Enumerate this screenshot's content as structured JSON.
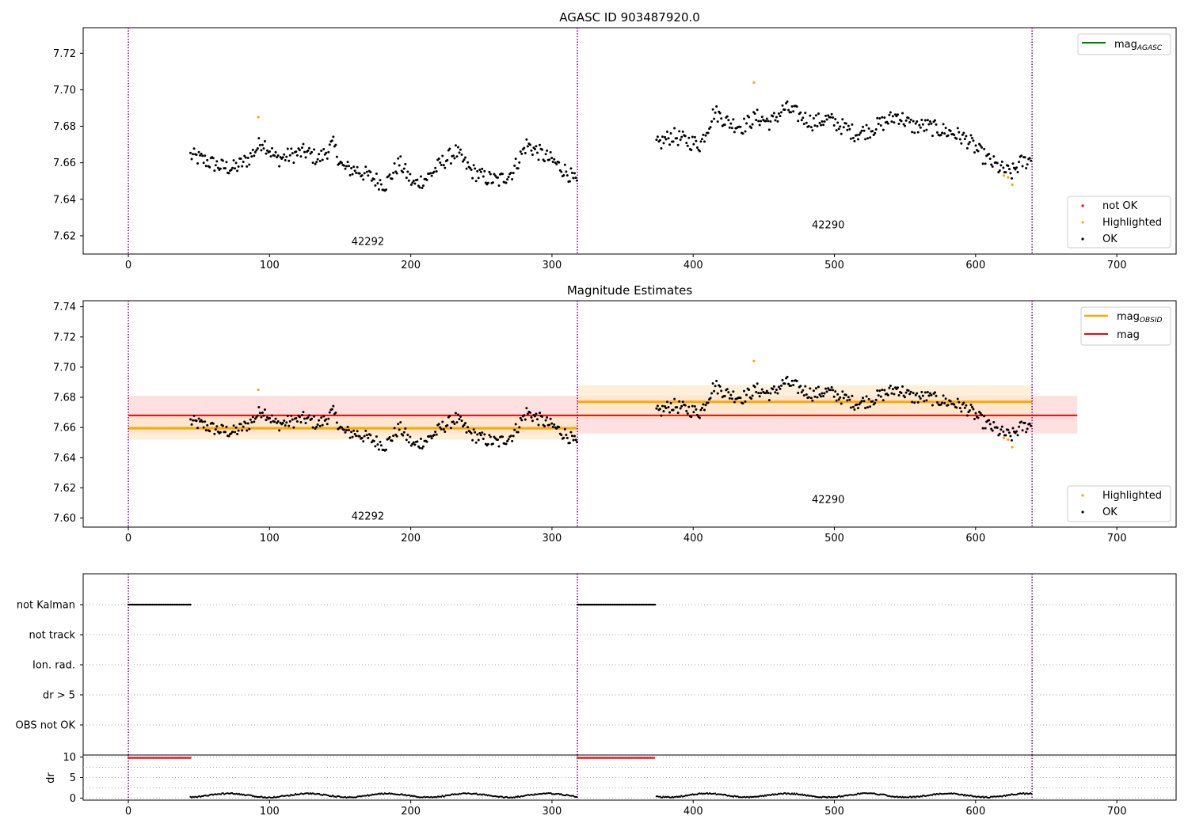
{
  "figure": {
    "colors": {
      "ok": "#000000",
      "highlighted": "#ffa500",
      "not_ok": "#ff0000",
      "agasc": "#008000",
      "mag": "#ff0000",
      "obsid": "#ffa500",
      "boundary": "#800080",
      "mag_band": "#ffcccc",
      "obsid_band": "#fde8c8"
    }
  },
  "chart_data": [
    {
      "id": "top",
      "type": "scatter",
      "title": "AGASC ID 903487920.0",
      "xlim": [
        -32,
        742
      ],
      "ylim": [
        7.61,
        7.734
      ],
      "xticks": [
        0,
        100,
        200,
        300,
        400,
        500,
        600,
        700
      ],
      "xtick_labels": [
        "0",
        "100",
        "200",
        "300",
        "400",
        "500",
        "600",
        "700"
      ],
      "yticks": [
        7.62,
        7.64,
        7.66,
        7.68,
        7.7,
        7.72
      ],
      "ytick_labels": [
        "7.62",
        "7.64",
        "7.66",
        "7.68",
        "7.70",
        "7.72"
      ],
      "obsid_boundaries": [
        0,
        318,
        640
      ],
      "obsid_labels": [
        {
          "x": 158,
          "y": 7.615,
          "text": "42292"
        },
        {
          "x": 484,
          "y": 7.624,
          "text": "42290"
        }
      ],
      "highlighted_points": [
        [
          92,
          7.685
        ],
        [
          443,
          7.704
        ],
        [
          620,
          7.653
        ],
        [
          623,
          7.652
        ],
        [
          626,
          7.648
        ]
      ],
      "legend_upper": [
        {
          "label": "mag",
          "subscript": "AGASC",
          "color": "#008000",
          "kind": "line"
        }
      ],
      "legend_lower": [
        {
          "label": "not OK",
          "color": "#ff0000",
          "kind": "marker"
        },
        {
          "label": "Highlighted",
          "color": "#ffa500",
          "kind": "marker"
        },
        {
          "label": "OK",
          "color": "#000000",
          "kind": "marker"
        }
      ]
    },
    {
      "id": "middle",
      "type": "scatter",
      "title": "Magnitude Estimates",
      "xlim": [
        -32,
        742
      ],
      "ylim": [
        7.594,
        7.744
      ],
      "xticks": [
        0,
        100,
        200,
        300,
        400,
        500,
        600,
        700
      ],
      "xtick_labels": [
        "0",
        "100",
        "200",
        "300",
        "400",
        "500",
        "600",
        "700"
      ],
      "yticks": [
        7.6,
        7.62,
        7.64,
        7.66,
        7.68,
        7.7,
        7.72,
        7.74
      ],
      "ytick_labels": [
        "7.60",
        "7.62",
        "7.64",
        "7.66",
        "7.68",
        "7.70",
        "7.72",
        "7.74"
      ],
      "obsid_boundaries": [
        0,
        318,
        640
      ],
      "obsid_labels": [
        {
          "x": 158,
          "y": 7.599,
          "text": "42292"
        },
        {
          "x": 484,
          "y": 7.61,
          "text": "42290"
        }
      ],
      "mag": {
        "value": 7.668,
        "low": 7.656,
        "high": 7.681,
        "x_start": 0,
        "x_end": 672
      },
      "obsid_mags": [
        {
          "x_start": 0,
          "x_end": 318,
          "value": 7.6595,
          "low": 7.652,
          "high": 7.667
        },
        {
          "x_start": 318,
          "x_end": 640,
          "value": 7.677,
          "low": 7.666,
          "high": 7.688
        }
      ],
      "highlighted_points": [
        [
          92,
          7.685
        ],
        [
          443,
          7.704
        ],
        [
          620,
          7.653
        ],
        [
          623,
          7.652
        ],
        [
          626,
          7.647
        ]
      ],
      "legend_upper": [
        {
          "label": "mag",
          "subscript": "OBSID",
          "color": "#ffa500",
          "kind": "line"
        },
        {
          "label": "mag",
          "subscript": "",
          "color": "#ff0000",
          "kind": "line"
        }
      ],
      "legend_lower": [
        {
          "label": "Highlighted",
          "color": "#ffa500",
          "kind": "marker"
        },
        {
          "label": "OK",
          "color": "#000000",
          "kind": "marker"
        }
      ]
    },
    {
      "id": "flags",
      "type": "scatter",
      "xlim": [
        -32,
        742
      ],
      "categories": [
        "not Kalman",
        "not track",
        "Ion. rad.",
        "dr > 5",
        "OBS not OK"
      ],
      "obsid_boundaries": [
        0,
        318,
        640
      ],
      "flagged_ranges": [
        {
          "category": "not Kalman",
          "x_start": 0,
          "x_end": 44
        },
        {
          "category": "not Kalman",
          "x_start": 318,
          "x_end": 373
        }
      ]
    },
    {
      "id": "dr",
      "type": "scatter",
      "ylabel": "dr",
      "xlim": [
        -32,
        742
      ],
      "ylim": [
        -0.5,
        10.5
      ],
      "yticks": [
        0,
        5,
        10
      ],
      "ytick_labels": [
        "0",
        "5",
        "10"
      ],
      "xticks": [
        0,
        100,
        200,
        300,
        400,
        500,
        600,
        700
      ],
      "xtick_labels": [
        "0",
        "100",
        "200",
        "300",
        "400",
        "500",
        "600",
        "700"
      ],
      "obsid_boundaries": [
        0,
        318,
        640
      ],
      "saturated_ranges": [
        {
          "x_start": 0,
          "x_end": 44,
          "value": 9.8
        },
        {
          "x_start": 318,
          "x_end": 373,
          "value": 9.8
        }
      ]
    }
  ]
}
